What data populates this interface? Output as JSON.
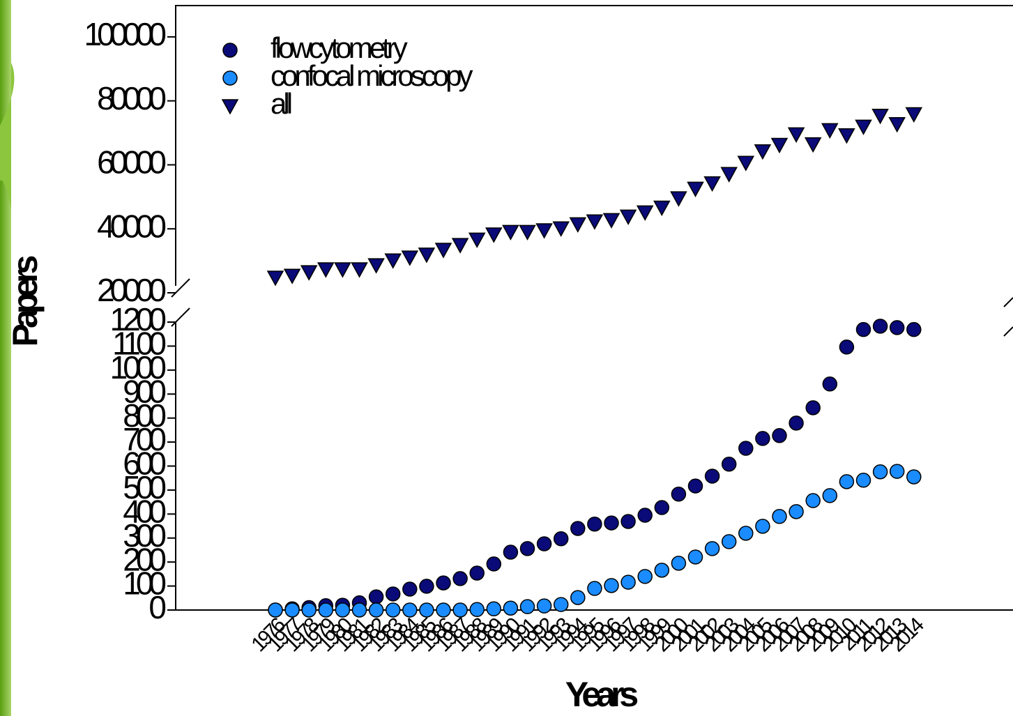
{
  "chart_data": {
    "type": "scatter",
    "x_label": "Years",
    "y_label": "Papers",
    "categories": [
      "1976",
      "1977",
      "1978",
      "1979",
      "1980",
      "1981",
      "1982",
      "1983",
      "1984",
      "1985",
      "1986",
      "1987",
      "1988",
      "1989",
      "1990",
      "1991",
      "1992",
      "1993",
      "1994",
      "1995",
      "1996",
      "1997",
      "1998",
      "1999",
      "2000",
      "2001",
      "2002",
      "2003",
      "2004",
      "2005",
      "2006",
      "2007",
      "2008",
      "2009",
      "2010",
      "2011",
      "2012",
      "2013",
      "2014"
    ],
    "ylim": [
      0,
      1200
    ],
    "yticks": [
      0,
      100,
      200,
      300,
      400,
      500,
      600,
      700,
      800,
      900,
      1000,
      1100,
      1200
    ],
    "y2lim": [
      20000,
      110000
    ],
    "y2ticks": [
      20000,
      40000,
      60000,
      80000,
      100000
    ],
    "series": [
      {
        "name": "flowcytometry",
        "color": "#0a0a78",
        "marker": "circle",
        "values": [
          0,
          5,
          10,
          18,
          20,
          30,
          55,
          67,
          87,
          99,
          113,
          131,
          154,
          192,
          241,
          256,
          276,
          297,
          340,
          358,
          363,
          369,
          395,
          427,
          483,
          517,
          558,
          608,
          674,
          715,
          727,
          779,
          843,
          942,
          1096,
          1169,
          1183,
          1177,
          1169
        ]
      },
      {
        "name": "confocal microscopy",
        "color": "#1a8cff",
        "marker": "circle",
        "values": [
          0,
          0,
          0,
          0,
          0,
          0,
          0,
          0,
          0,
          0,
          0,
          0,
          2,
          5,
          8,
          14,
          17,
          23,
          52,
          90,
          102,
          116,
          140,
          166,
          195,
          221,
          256,
          285,
          320,
          349,
          390,
          410,
          456,
          477,
          535,
          541,
          576,
          578,
          555
        ]
      },
      {
        "name": "all",
        "color": "#0a0a78",
        "marker": "triangle",
        "axis": "y2",
        "values": [
          24800,
          25400,
          26500,
          27400,
          27400,
          27400,
          28700,
          30200,
          31100,
          32000,
          33500,
          35000,
          36700,
          38300,
          39100,
          39100,
          39600,
          40200,
          41500,
          42400,
          42800,
          43900,
          45200,
          46700,
          49600,
          52600,
          54300,
          57200,
          60700,
          64300,
          66300,
          69600,
          66500,
          70900,
          69300,
          72000,
          75400,
          72800,
          75900
        ]
      }
    ]
  }
}
